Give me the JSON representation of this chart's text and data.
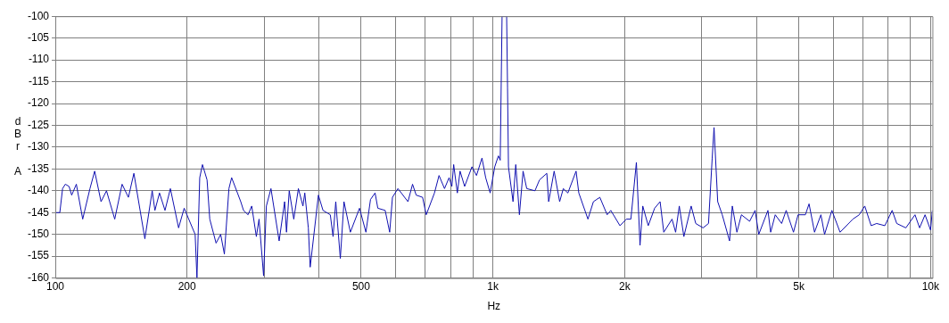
{
  "chart_data": {
    "type": "line",
    "xlabel": "Hz",
    "ylabel": "dBr A",
    "log": "x",
    "grid": true,
    "legend": false,
    "marker": "none",
    "line_style": "solid",
    "xlim": [
      100,
      10100
    ],
    "ylim": [
      -160,
      -100
    ],
    "xticks": [
      100,
      200,
      {
        "value": 300,
        "label": null
      },
      {
        "value": 400,
        "label": null
      },
      500,
      {
        "value": 600,
        "label": null
      },
      {
        "value": 700,
        "label": null
      },
      {
        "value": 800,
        "label": null
      },
      {
        "value": 900,
        "label": null
      },
      {
        "value": 1000,
        "label": "1k"
      },
      {
        "value": 2000,
        "label": "2k"
      },
      {
        "value": 3000,
        "label": null
      },
      {
        "value": 4000,
        "label": null
      },
      {
        "value": 5000,
        "label": "5k"
      },
      {
        "value": 6000,
        "label": null
      },
      {
        "value": 7000,
        "label": null
      },
      {
        "value": 8000,
        "label": null
      },
      {
        "value": 9000,
        "label": null
      },
      {
        "value": 10000,
        "label": "10k"
      }
    ],
    "yticks": [
      -160,
      -155,
      -150,
      -145,
      -140,
      -135,
      -130,
      -125,
      -120,
      -115,
      -110,
      -105,
      -100
    ],
    "series": [
      {
        "color": "#1010b0",
        "x": [
          100,
          102.4,
          103.9,
          105.4,
          107.5,
          109,
          111.7,
          115.5,
          120,
          123,
          127.2,
          130.9,
          136.7,
          142.1,
          146.9,
          151.2,
          160.2,
          166.5,
          168.9,
          173,
          178.1,
          183.2,
          191.3,
          197,
          208.7,
          210.7,
          213.8,
          216.9,
          222.2,
          225.4,
          233,
          238.7,
          243.4,
          249.3,
          252.9,
          265.3,
          269.2,
          275.7,
          281.1,
          288,
          292.1,
          299.2,
          303.6,
          311,
          324.7,
          334.2,
          337.5,
          342.4,
          350.7,
          359.3,
          368,
          371.6,
          378.6,
          382.3,
          399.2,
          409,
          425,
          431.2,
          437.4,
          448,
          456.7,
          472.3,
          495.6,
          512.6,
          525.1,
          537.9,
          545.7,
          567.2,
          580.9,
          589.4,
          606.6,
          639.5,
          655.1,
          667.8,
          690.7,
          704.1,
          735.2,
          753.1,
          775.1,
          794,
          805.6,
          813.4,
          829.2,
          841.2,
          861.7,
          895.5,
          917.2,
          944.1,
          962.5,
          985.6,
          1009.7,
          1029.2,
          1039.2,
          1049.3,
          1074.8,
          1080,
          1085.2,
          1111.6,
          1127.7,
          1149.5,
          1171.9,
          1194.6,
          1247.4,
          1277.9,
          1328,
          1340.8,
          1380.1,
          1420.5,
          1448.2,
          1483.4,
          1548.8,
          1571.2,
          1648.6,
          1696.7,
          1755.1,
          1823.9,
          1859.2,
          1950.8,
          2017.6,
          2066.5,
          2127.3,
          2168.4,
          2200,
          2264.2,
          2341.6,
          2410,
          2457,
          2566,
          2615,
          2666,
          2731,
          2838,
          2907,
          3021,
          3109,
          3170,
          3201,
          3263,
          3342,
          3473,
          3524,
          3610,
          3697,
          3860,
          3973,
          4050,
          4250,
          4312,
          4417,
          4568,
          4679,
          4862,
          4981,
          5176,
          5277,
          5431,
          5617,
          5726,
          5950,
          6213,
          6645,
          6873,
          7074,
          7316,
          7530,
          7863,
          8172,
          8371,
          8782,
          9215,
          9441,
          9716,
          10000,
          10097
        ],
        "values": [
          -145,
          -145,
          -139.5,
          -138.5,
          -139,
          -141,
          -138.5,
          -146.5,
          -139.5,
          -135.5,
          -142.5,
          -140,
          -146.5,
          -138.5,
          -141.5,
          -136,
          -151,
          -140,
          -144.5,
          -140.5,
          -144.5,
          -139.5,
          -148.5,
          -144,
          -150,
          -160,
          -137,
          -134,
          -137.5,
          -146.5,
          -152,
          -150,
          -154.5,
          -139.5,
          -137,
          -142.5,
          -144.5,
          -145.5,
          -143.5,
          -150.5,
          -146.5,
          -159.5,
          -143.5,
          -139.5,
          -151.5,
          -142.5,
          -149.5,
          -140,
          -146.5,
          -139.5,
          -143.5,
          -140.5,
          -148.5,
          -157.5,
          -141,
          -144.5,
          -145.5,
          -150.5,
          -142.5,
          -155.5,
          -142.5,
          -149.5,
          -144,
          -149.5,
          -142,
          -140.5,
          -144,
          -144.5,
          -149.5,
          -141.5,
          -139.5,
          -142.5,
          -138.5,
          -141,
          -141.5,
          -145.5,
          -140.5,
          -136.5,
          -139.5,
          -137,
          -139,
          -134,
          -140.5,
          -135.5,
          -139,
          -134.5,
          -136.5,
          -132.5,
          -137,
          -140.5,
          -134.5,
          -132,
          -133,
          -100,
          -100,
          -116.5,
          -134.5,
          -142.5,
          -134,
          -145.5,
          -135.5,
          -139.5,
          -140,
          -137.5,
          -136,
          -142.5,
          -135.5,
          -142.5,
          -139.5,
          -140.5,
          -135.5,
          -140.5,
          -146.5,
          -142.5,
          -141.5,
          -145.5,
          -144.5,
          -148,
          -146.5,
          -146.5,
          -133.5,
          -152.5,
          -143.5,
          -148,
          -144,
          -142.5,
          -149.5,
          -146.5,
          -149.5,
          -143.5,
          -150.5,
          -143.5,
          -147.5,
          -148.5,
          -147.5,
          -132.5,
          -125.5,
          -142.5,
          -145.5,
          -151.5,
          -143.5,
          -149.5,
          -145.5,
          -147,
          -144.5,
          -150,
          -144.5,
          -149.5,
          -145.5,
          -147.5,
          -144.5,
          -149.5,
          -145.5,
          -145.5,
          -143,
          -149.5,
          -145.5,
          -150,
          -144.5,
          -149.5,
          -146.5,
          -145.5,
          -143.5,
          -148,
          -147.5,
          -148,
          -144.5,
          -147.5,
          -148.5,
          -145.5,
          -148.5,
          -145.5,
          -149,
          -144.5
        ]
      }
    ]
  }
}
